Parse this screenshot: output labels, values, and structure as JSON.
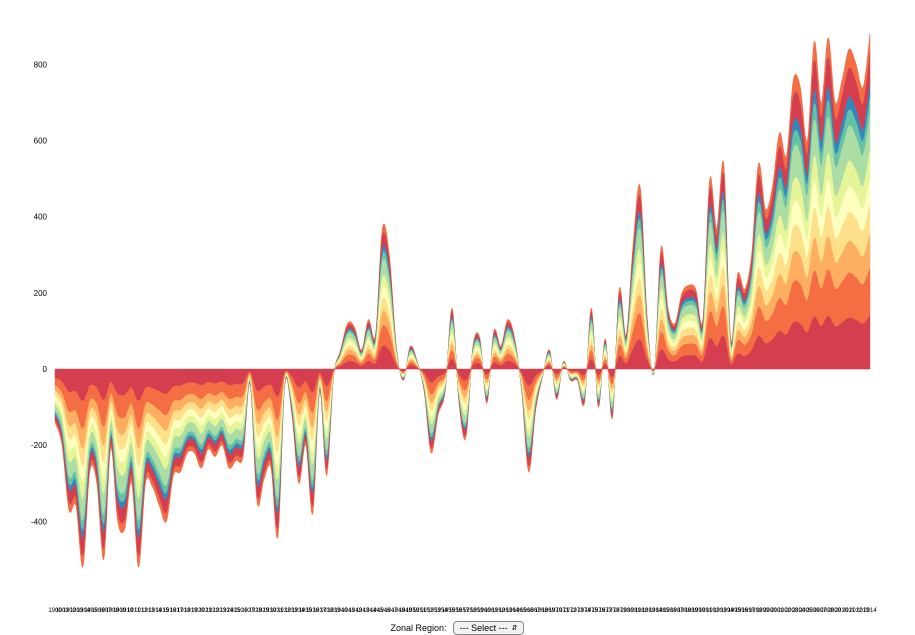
{
  "chart_data": {
    "type": "area",
    "subtype": "stacked-diverging",
    "x_start": 1900,
    "x_end": 2014,
    "x_first_label": "1900",
    "x_last_label": "2014",
    "ylim": [
      -580,
      890
    ],
    "y_ticks": [
      -400,
      -200,
      0,
      200,
      400,
      600,
      800
    ],
    "grid": false,
    "title": "",
    "xlabel": "",
    "ylabel": "",
    "colors": [
      "#d53e4f",
      "#f46d43",
      "#fdae61",
      "#fee08b",
      "#ffffbf",
      "#e6f598",
      "#abdda4",
      "#66c2a5",
      "#3288bd",
      "#d53e4f",
      "#f46d43"
    ],
    "bands": [
      0.16,
      0.14,
      0.1,
      0.09,
      0.08,
      0.08,
      0.11,
      0.05,
      0.04,
      0.09,
      0.06
    ],
    "totals": [
      -140,
      -200,
      -370,
      -360,
      -520,
      -270,
      -300,
      -500,
      -210,
      -400,
      -420,
      -300,
      -520,
      -300,
      -310,
      -360,
      -400,
      -280,
      -270,
      -220,
      -220,
      -260,
      -210,
      -230,
      -200,
      -260,
      -240,
      -230,
      -40,
      -350,
      -290,
      -260,
      -440,
      -40,
      -120,
      -300,
      -200,
      -380,
      -60,
      -280,
      -20,
      50,
      120,
      110,
      50,
      130,
      90,
      370,
      300,
      60,
      -30,
      60,
      20,
      -60,
      -220,
      -120,
      -60,
      160,
      -90,
      -180,
      60,
      80,
      -90,
      100,
      60,
      130,
      80,
      -60,
      -270,
      -110,
      -20,
      50,
      -80,
      20,
      -30,
      -30,
      -90,
      160,
      -100,
      80,
      -130,
      210,
      90,
      330,
      480,
      140,
      -10,
      320,
      160,
      120,
      200,
      220,
      210,
      130,
      500,
      370,
      540,
      80,
      250,
      210,
      300,
      540,
      420,
      480,
      620,
      560,
      760,
      740,
      600,
      860,
      700,
      870,
      700,
      760,
      840,
      800,
      740,
      880
    ],
    "controls": {
      "zonal_label": "Zonal Region:",
      "select_value": "--- Select ---"
    }
  }
}
